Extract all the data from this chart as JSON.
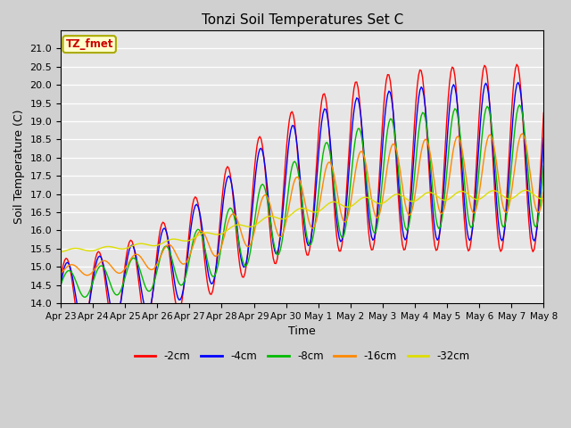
{
  "title": "Tonzi Soil Temperatures Set C",
  "xlabel": "Time",
  "ylabel": "Soil Temperature (C)",
  "ylim": [
    14.0,
    21.5
  ],
  "yticks": [
    14.0,
    14.5,
    15.0,
    15.5,
    16.0,
    16.5,
    17.0,
    17.5,
    18.0,
    18.5,
    19.0,
    19.5,
    20.0,
    20.5,
    21.0
  ],
  "bg_color": "#e6e6e6",
  "fig_color": "#d0d0d0",
  "grid_color": "white",
  "legend_label": "TZ_fmet",
  "series_colors": {
    "-2cm": "#ff0000",
    "-4cm": "#0000ff",
    "-8cm": "#00bb00",
    "-16cm": "#ff8800",
    "-32cm": "#dddd00"
  },
  "xtick_labels": [
    "Apr 23",
    "Apr 24",
    "Apr 25",
    "Apr 26",
    "Apr 27",
    "Apr 28",
    "Apr 29",
    "Apr 30",
    "May 1",
    "May 2",
    "May 3",
    "May 4",
    "May 5",
    "May 6",
    "May 7",
    "May 8"
  ],
  "n_days": 15,
  "samples_per_day": 24
}
